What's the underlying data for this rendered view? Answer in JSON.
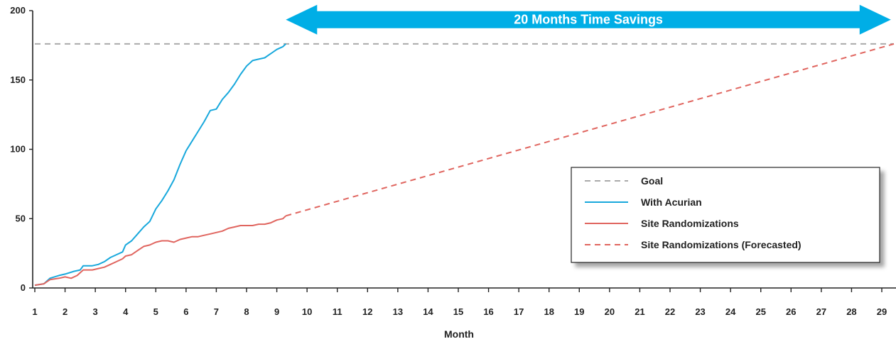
{
  "chart_data": {
    "type": "line",
    "title": "",
    "xlabel": "Month",
    "ylabel": "",
    "xlim": [
      1,
      29.4
    ],
    "ylim": [
      0,
      200
    ],
    "x_ticks": [
      1,
      2,
      3,
      4,
      5,
      6,
      7,
      8,
      9,
      10,
      11,
      12,
      13,
      14,
      15,
      16,
      17,
      18,
      19,
      20,
      21,
      22,
      23,
      24,
      25,
      26,
      27,
      28,
      29
    ],
    "y_ticks": [
      0,
      50,
      100,
      150,
      200
    ],
    "grid": false,
    "legend_position": "right",
    "annotation": {
      "text": "20 Months Time Savings",
      "x_start": 9.3,
      "x_end": 29.3,
      "y": 196,
      "color": "#00aee6"
    },
    "series": [
      {
        "name": "Goal",
        "style": "dashed",
        "color": "#aaaaaa",
        "x": [
          1,
          29.4
        ],
        "y": [
          176,
          176
        ]
      },
      {
        "name": "With Acurian",
        "style": "solid",
        "color": "#18a8dc",
        "x": [
          1,
          1.3,
          1.5,
          1.8,
          2.0,
          2.3,
          2.5,
          2.6,
          2.9,
          3.1,
          3.3,
          3.5,
          3.7,
          3.9,
          4.0,
          4.2,
          4.4,
          4.6,
          4.8,
          5.0,
          5.2,
          5.4,
          5.6,
          5.8,
          6.0,
          6.2,
          6.4,
          6.6,
          6.8,
          7.0,
          7.2,
          7.4,
          7.6,
          7.8,
          8.0,
          8.2,
          8.4,
          8.6,
          8.8,
          9.0,
          9.2,
          9.3
        ],
        "y": [
          2,
          3,
          7,
          9,
          10,
          12,
          13,
          16,
          16,
          17,
          19,
          22,
          24,
          26,
          31,
          34,
          39,
          44,
          48,
          57,
          63,
          70,
          78,
          89,
          99,
          106,
          113,
          120,
          128,
          129,
          136,
          141,
          147,
          154,
          160,
          164,
          165,
          166,
          169,
          172,
          174,
          176
        ]
      },
      {
        "name": "Site Randomizations",
        "style": "solid",
        "color": "#e0655f",
        "x": [
          1,
          1.3,
          1.5,
          1.8,
          2.0,
          2.2,
          2.4,
          2.6,
          2.9,
          3.1,
          3.3,
          3.5,
          3.7,
          3.9,
          4.0,
          4.2,
          4.4,
          4.6,
          4.8,
          5.0,
          5.2,
          5.4,
          5.6,
          5.8,
          6.0,
          6.2,
          6.4,
          6.6,
          6.8,
          7.0,
          7.2,
          7.4,
          7.6,
          7.8,
          8.0,
          8.2,
          8.4,
          8.6,
          8.8,
          9.0,
          9.2,
          9.3
        ],
        "y": [
          2,
          3,
          6,
          7,
          8,
          7,
          9,
          13,
          13,
          14,
          15,
          17,
          19,
          21,
          23,
          24,
          27,
          30,
          31,
          33,
          34,
          34,
          33,
          35,
          36,
          37,
          37,
          38,
          39,
          40,
          41,
          43,
          44,
          45,
          45,
          45,
          46,
          46,
          47,
          49,
          50,
          52
        ]
      },
      {
        "name": "Site Randomizations (Forecasted)",
        "style": "dashed",
        "color": "#e0655f",
        "x": [
          9.3,
          29.4
        ],
        "y": [
          52,
          176
        ]
      }
    ]
  }
}
